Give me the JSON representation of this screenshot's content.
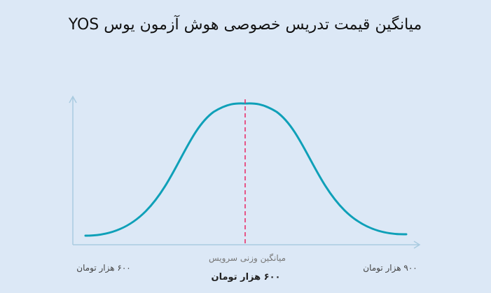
{
  "chart_data": {
    "type": "line",
    "title": "میانگین قیمت تدریس خصوصی هوش آزمون یوس YOS",
    "curve": "bell",
    "x_tick_labels": {
      "left": "۶۰۰ هزار تومان",
      "right": "۹۰۰ هزار تومان"
    },
    "mean_marker": {
      "label": "میانگین وزنی سرویس",
      "value_label": "۶۰۰ هزار تومان"
    },
    "colors": {
      "curve": "#0fa0b8",
      "mean_line": "#e8336d",
      "axis": "#a9cbe0"
    }
  }
}
